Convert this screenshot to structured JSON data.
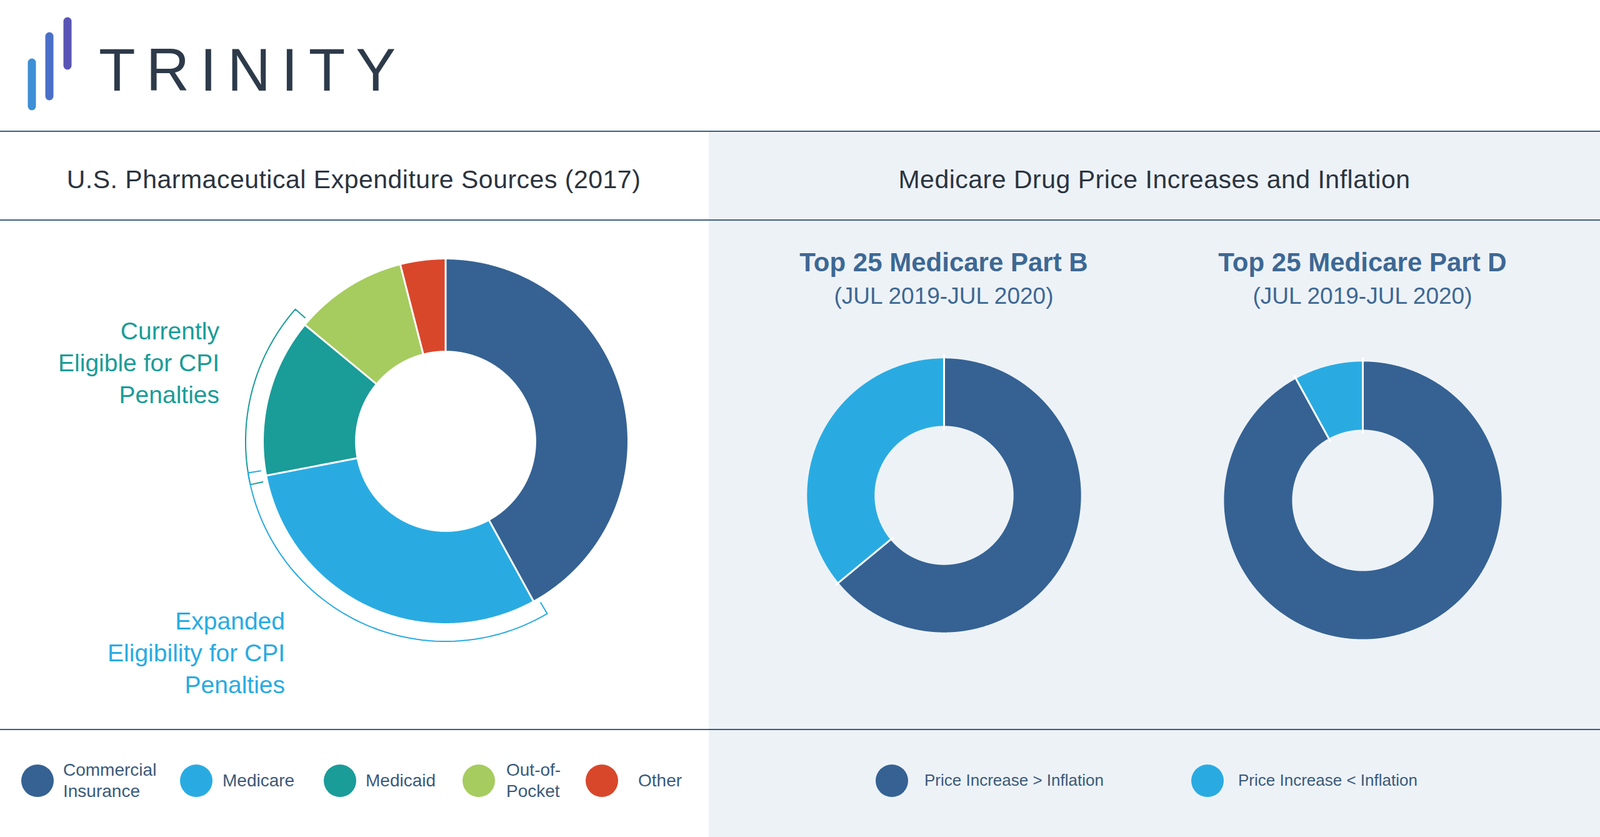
{
  "header": {
    "logo": "TRINITY"
  },
  "panel_title": "Medicare Drug Price Increases and Inflation",
  "chart_data": [
    {
      "type": "donut",
      "title": "U.S. Pharmaceutical Expenditure Sources (2017)",
      "categories": [
        "Commercial Insurance",
        "Medicare",
        "Medicaid",
        "Out-of-Pocket",
        "Other"
      ],
      "values": [
        42,
        30,
        14,
        10,
        4
      ],
      "colors": [
        "#356293",
        "#29abe2",
        "#1a9c98",
        "#a6cc5f",
        "#d9472b"
      ],
      "legend": "bottom",
      "annotations": [
        {
          "text": [
            "Currently",
            "Eligible for CPI",
            "Penalties"
          ],
          "categories": [
            "Medicaid"
          ]
        },
        {
          "text": [
            "Expanded",
            "Eligibility for CPI",
            "Penalties"
          ],
          "categories": [
            "Medicare"
          ]
        }
      ]
    },
    {
      "type": "donut",
      "title": "Top 25 Medicare Part B",
      "subtitle": "(JUL 2019-JUL 2020)",
      "categories": [
        "Price Increase > Inflation",
        "Price Increase < Inflation"
      ],
      "values": [
        64,
        36
      ],
      "colors": [
        "#356293",
        "#29abe2"
      ],
      "legend": "bottom"
    },
    {
      "type": "donut",
      "title": "Top 25 Medicare Part D",
      "subtitle": "(JUL 2019-JUL 2020)",
      "categories": [
        "Price Increase > Inflation",
        "Price Increase < Inflation"
      ],
      "values": [
        92,
        8
      ],
      "colors": [
        "#356293",
        "#29abe2"
      ],
      "legend": "bottom"
    }
  ]
}
